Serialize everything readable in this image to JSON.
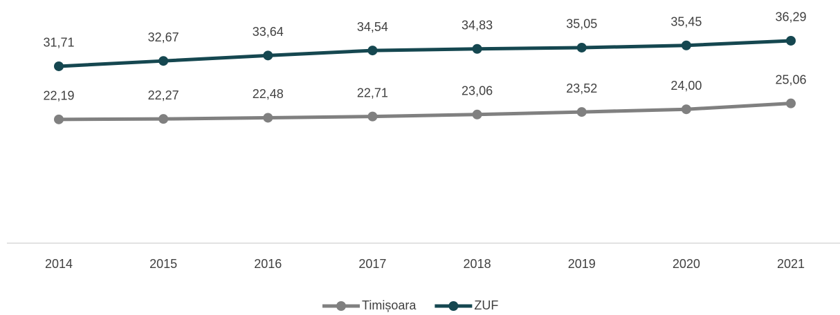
{
  "chart_data": {
    "type": "line",
    "categories": [
      "2014",
      "2015",
      "2016",
      "2017",
      "2018",
      "2019",
      "2020",
      "2021"
    ],
    "series": [
      {
        "name": "Timișoara",
        "color": "#808080",
        "values": [
          22.19,
          22.27,
          22.48,
          22.71,
          23.06,
          23.52,
          24.0,
          25.06
        ],
        "value_labels": [
          "22,19",
          "22,27",
          "22,48",
          "22,71",
          "23,06",
          "23,52",
          "24,00",
          "25,06"
        ]
      },
      {
        "name": "ZUF",
        "color": "#154750",
        "values": [
          31.71,
          32.67,
          33.64,
          34.54,
          34.83,
          35.05,
          35.45,
          36.29
        ],
        "value_labels": [
          "31,71",
          "32,67",
          "33,64",
          "34,54",
          "34,83",
          "35,05",
          "35,45",
          "36,29"
        ]
      }
    ],
    "ylim": [
      0,
      40
    ],
    "legend": "bottom"
  }
}
